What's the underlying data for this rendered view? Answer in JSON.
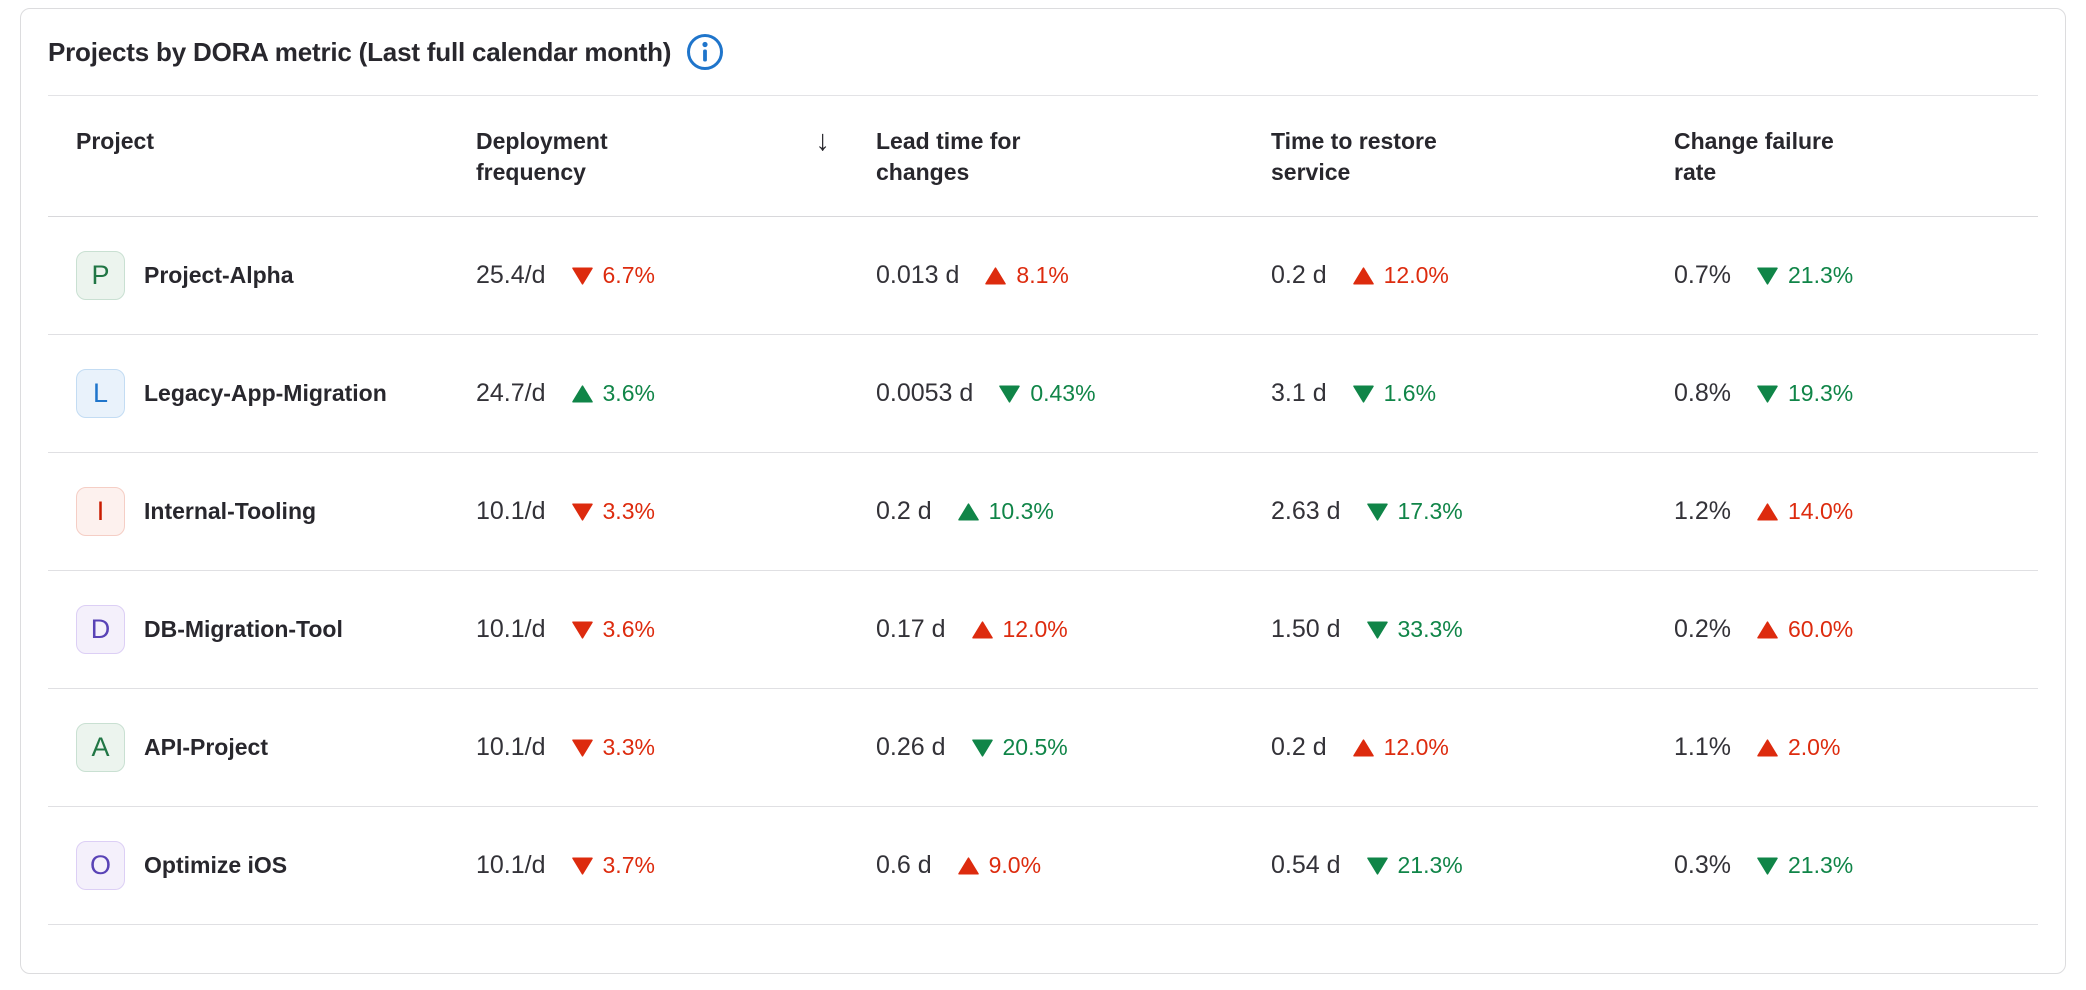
{
  "panel": {
    "title": "Projects by DORA metric (Last full calendar month)",
    "info_icon": "information-circle-icon"
  },
  "table": {
    "sort": {
      "column": "Deployment frequency",
      "direction": "descending",
      "glyph": "↓"
    },
    "columns": [
      {
        "label": "Project"
      },
      {
        "label": "Deployment frequency",
        "sorted": true
      },
      {
        "label": "Lead time for changes"
      },
      {
        "label": "Time to restore service"
      },
      {
        "label": "Change failure rate"
      }
    ],
    "rows": [
      {
        "avatar": {
          "letter": "P",
          "color": "green"
        },
        "name": "Project-Alpha",
        "metrics": [
          {
            "value": "25.4/d",
            "trend": "down",
            "change": "6.7%",
            "sentiment": "negative"
          },
          {
            "value": "0.013 d",
            "trend": "up",
            "change": "8.1%",
            "sentiment": "negative"
          },
          {
            "value": "0.2 d",
            "trend": "up",
            "change": "12.0%",
            "sentiment": "negative"
          },
          {
            "value": "0.7%",
            "trend": "down",
            "change": "21.3%",
            "sentiment": "positive"
          }
        ]
      },
      {
        "avatar": {
          "letter": "L",
          "color": "blue"
        },
        "name": "Legacy-App-Migration",
        "metrics": [
          {
            "value": "24.7/d",
            "trend": "up",
            "change": "3.6%",
            "sentiment": "positive"
          },
          {
            "value": "0.0053 d",
            "trend": "down",
            "change": "0.43%",
            "sentiment": "positive"
          },
          {
            "value": "3.1 d",
            "trend": "down",
            "change": "1.6%",
            "sentiment": "positive"
          },
          {
            "value": "0.8%",
            "trend": "down",
            "change": "19.3%",
            "sentiment": "positive"
          }
        ]
      },
      {
        "avatar": {
          "letter": "I",
          "color": "red"
        },
        "name": "Internal-Tooling",
        "metrics": [
          {
            "value": "10.1/d",
            "trend": "down",
            "change": "3.3%",
            "sentiment": "negative"
          },
          {
            "value": "0.2 d",
            "trend": "up",
            "change": "10.3%",
            "sentiment": "positive"
          },
          {
            "value": "2.63 d",
            "trend": "down",
            "change": "17.3%",
            "sentiment": "positive"
          },
          {
            "value": "1.2%",
            "trend": "up",
            "change": "14.0%",
            "sentiment": "negative"
          }
        ]
      },
      {
        "avatar": {
          "letter": "D",
          "color": "purple"
        },
        "name": "DB-Migration-Tool",
        "metrics": [
          {
            "value": "10.1/d",
            "trend": "down",
            "change": "3.6%",
            "sentiment": "negative"
          },
          {
            "value": "0.17 d",
            "trend": "up",
            "change": "12.0%",
            "sentiment": "negative"
          },
          {
            "value": "1.50 d",
            "trend": "down",
            "change": "33.3%",
            "sentiment": "positive"
          },
          {
            "value": "0.2%",
            "trend": "up",
            "change": "60.0%",
            "sentiment": "negative"
          }
        ]
      },
      {
        "avatar": {
          "letter": "A",
          "color": "green"
        },
        "name": "API-Project",
        "metrics": [
          {
            "value": "10.1/d",
            "trend": "down",
            "change": "3.3%",
            "sentiment": "negative"
          },
          {
            "value": "0.26 d",
            "trend": "down",
            "change": "20.5%",
            "sentiment": "positive"
          },
          {
            "value": "0.2 d",
            "trend": "up",
            "change": "12.0%",
            "sentiment": "negative"
          },
          {
            "value": "1.1%",
            "trend": "up",
            "change": "2.0%",
            "sentiment": "negative"
          }
        ]
      },
      {
        "avatar": {
          "letter": "O",
          "color": "purple"
        },
        "name": "Optimize iOS",
        "metrics": [
          {
            "value": "10.1/d",
            "trend": "down",
            "change": "3.7%",
            "sentiment": "negative"
          },
          {
            "value": "0.6 d",
            "trend": "up",
            "change": "9.0%",
            "sentiment": "negative"
          },
          {
            "value": "0.54 d",
            "trend": "down",
            "change": "21.3%",
            "sentiment": "positive"
          },
          {
            "value": "0.3%",
            "trend": "down",
            "change": "21.3%",
            "sentiment": "positive"
          }
        ]
      }
    ]
  },
  "colors": {
    "trend_negative": "#dd2b0e",
    "trend_positive": "#108548",
    "info_blue": "#1f75cb",
    "card_border": "#dcdcde",
    "row_divider": "#e0e0e3",
    "text_primary": "#28272d",
    "text_value": "#333238",
    "avatar": {
      "green": {
        "bg": "#ecf4ee",
        "border": "#c9e0d2",
        "text": "#217645"
      },
      "blue": {
        "bg": "#e9f2fb",
        "border": "#c3dcf3",
        "text": "#1f75cb"
      },
      "red": {
        "bg": "#fdf1ee",
        "border": "#f5cec5",
        "text": "#c91c00"
      },
      "purple": {
        "bg": "#f4f0fb",
        "border": "#dccff5",
        "text": "#5943b6"
      }
    }
  }
}
